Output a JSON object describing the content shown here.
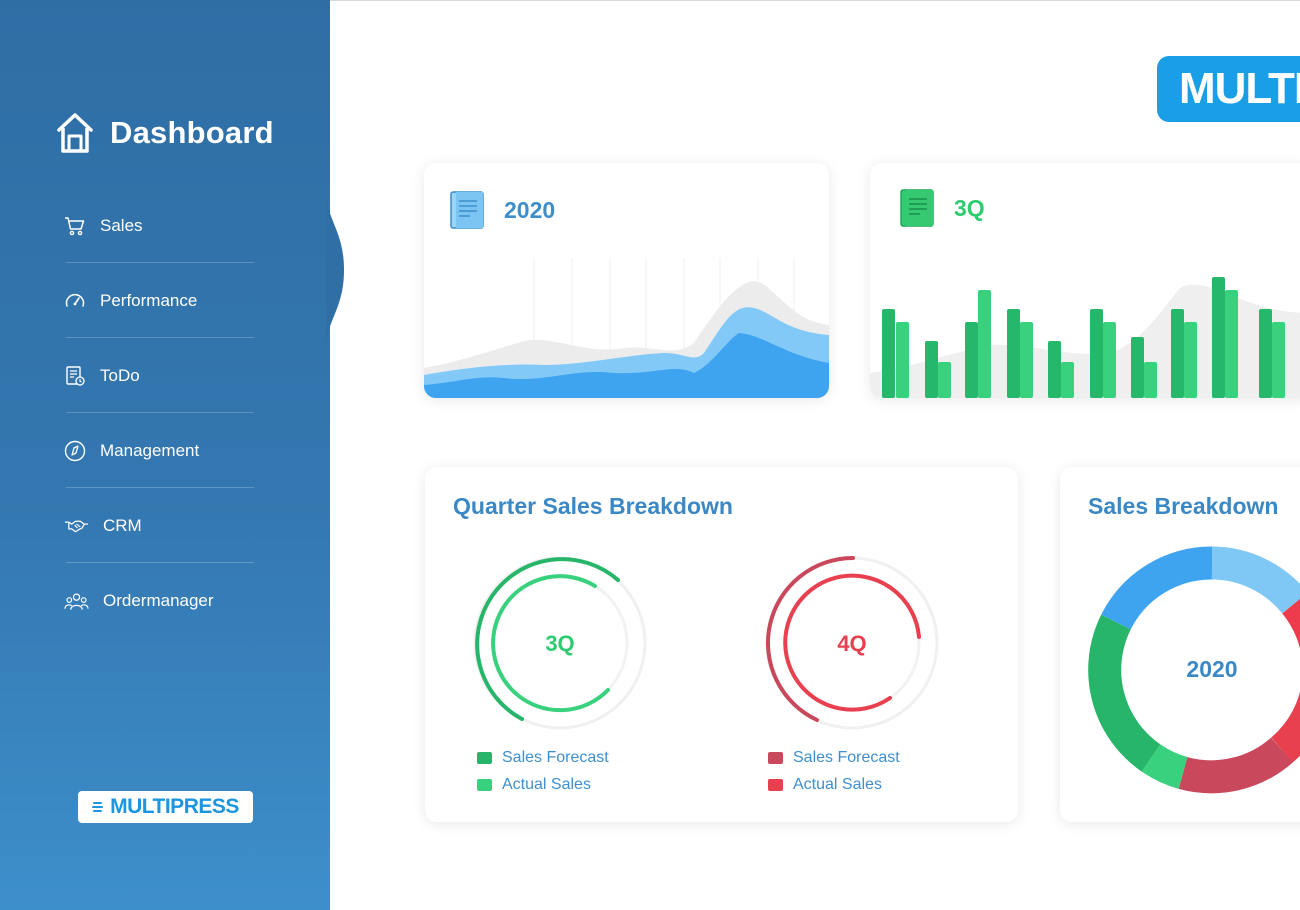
{
  "sidebar": {
    "title": "Dashboard",
    "items": [
      {
        "label": "Sales",
        "icon": "cart-icon"
      },
      {
        "label": "Performance",
        "icon": "speedometer-icon"
      },
      {
        "label": "ToDo",
        "icon": "checklist-icon"
      },
      {
        "label": "Management",
        "icon": "compass-icon"
      },
      {
        "label": "CRM",
        "icon": "handshake-icon"
      },
      {
        "label": "Ordermanager",
        "icon": "group-icon"
      }
    ],
    "logo_text": "MULTIPRESS"
  },
  "top_logo_text": "MULTIPRESS",
  "cards": {
    "year_card": {
      "value": "2020",
      "icon": "document-icon"
    },
    "quarter_card": {
      "value": "3Q",
      "icon": "document-icon"
    }
  },
  "quarter_breakdown": {
    "title": "Quarter Sales Breakdown",
    "gauges": [
      {
        "label": "3Q",
        "forecast_label": "Sales Forecast",
        "actual_label": "Actual Sales",
        "forecast_color": "#27b56a",
        "actual_color": "#3ad17e"
      },
      {
        "label": "4Q",
        "forecast_label": "Sales Forecast",
        "actual_label": "Actual Sales",
        "forecast_color": "#c9485b",
        "actual_color": "#e8404f"
      }
    ]
  },
  "sales_breakdown": {
    "title": "Sales Breakdown",
    "center_label": "2020"
  },
  "colors": {
    "sidebar": "#3477b0",
    "accent_blue": "#3d8fcb",
    "green": "#2ecc71",
    "red": "#e8404f"
  }
}
